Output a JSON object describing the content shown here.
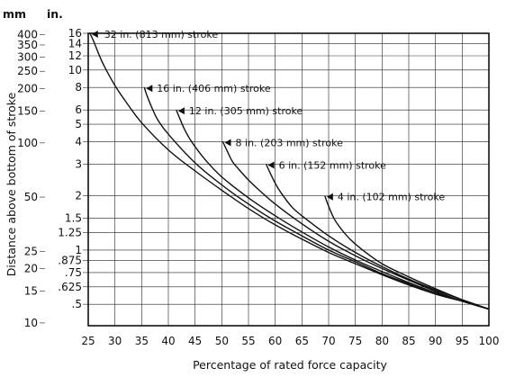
{
  "chart_data": {
    "type": "line",
    "xlabel": "Percentage of rated force capacity",
    "ylabel": "Distance above bottom of stroke",
    "y_scale": "log",
    "x_range": [
      25,
      100
    ],
    "y_range_in": [
      0.38,
      16
    ],
    "x_ticks": [
      "25",
      "30",
      "35",
      "40",
      "45",
      "50",
      "55",
      "60",
      "65",
      "70",
      "75",
      "80",
      "85",
      "90",
      "95",
      "100"
    ],
    "y_unit_in": "in.",
    "y_unit_mm": "mm",
    "in_ticks": [
      {
        "label": "16",
        "value": 16
      },
      {
        "label": "14",
        "value": 14
      },
      {
        "label": "12",
        "value": 12
      },
      {
        "label": "10",
        "value": 10
      },
      {
        "label": "8",
        "value": 8
      },
      {
        "label": "6",
        "value": 6
      },
      {
        "label": "5",
        "value": 5
      },
      {
        "label": "4",
        "value": 4
      },
      {
        "label": "3",
        "value": 3
      },
      {
        "label": "2",
        "value": 2
      },
      {
        "label": "1.5",
        "value": 1.5
      },
      {
        "label": "1.25",
        "value": 1.25
      },
      {
        "label": "1",
        "value": 1
      },
      {
        "label": ".875",
        "value": 0.875
      },
      {
        "label": ".75",
        "value": 0.75
      },
      {
        "label": ".625",
        "value": 0.625
      },
      {
        "label": ".5",
        "value": 0.5
      }
    ],
    "mm_ticks": [
      {
        "label": "400",
        "value": 400
      },
      {
        "label": "350",
        "value": 350
      },
      {
        "label": "300",
        "value": 300
      },
      {
        "label": "250",
        "value": 250
      },
      {
        "label": "200",
        "value": 200
      },
      {
        "label": "150",
        "value": 150
      },
      {
        "label": "100",
        "value": 100
      },
      {
        "label": "50",
        "value": 50
      },
      {
        "label": "25",
        "value": 25
      },
      {
        "label": "20",
        "value": 20
      },
      {
        "label": "15",
        "value": 15
      },
      {
        "label": "10",
        "value": 10
      }
    ],
    "series": [
      {
        "name": "32 in. (813 mm) stroke",
        "x": [
          25.3,
          26,
          27,
          28,
          30,
          32,
          35,
          40,
          45,
          50,
          55,
          60,
          65,
          70,
          75,
          80,
          85,
          90,
          95,
          100
        ],
        "y": [
          16,
          14.5,
          12.2,
          10.5,
          8.2,
          6.7,
          5.1,
          3.6,
          2.75,
          2.15,
          1.7,
          1.38,
          1.15,
          0.97,
          0.84,
          0.73,
          0.64,
          0.57,
          0.52,
          0.47
        ]
      },
      {
        "name": "16 in. (406 mm) stroke",
        "x": [
          35.5,
          36,
          37,
          38,
          40,
          45,
          50,
          55,
          60,
          65,
          70,
          75,
          80,
          85,
          90,
          95,
          100
        ],
        "y": [
          8,
          7.2,
          6.1,
          5.3,
          4.4,
          3.05,
          2.3,
          1.8,
          1.45,
          1.2,
          1.0,
          0.86,
          0.74,
          0.65,
          0.57,
          0.52,
          0.47
        ]
      },
      {
        "name": "12 in. (305 mm) stroke",
        "x": [
          41.5,
          42,
          43,
          44,
          45,
          47,
          50,
          55,
          60,
          65,
          70,
          75,
          80,
          85,
          90,
          95,
          100
        ],
        "y": [
          6,
          5.5,
          4.7,
          4.15,
          3.75,
          3.15,
          2.55,
          1.95,
          1.55,
          1.26,
          1.04,
          0.88,
          0.76,
          0.66,
          0.58,
          0.52,
          0.47
        ]
      },
      {
        "name": "8 in. (203 mm) stroke",
        "x": [
          50.2,
          51,
          52,
          53,
          55,
          57,
          60,
          65,
          70,
          75,
          80,
          85,
          90,
          95,
          100
        ],
        "y": [
          4,
          3.55,
          3.1,
          2.85,
          2.45,
          2.15,
          1.8,
          1.4,
          1.12,
          0.93,
          0.79,
          0.68,
          0.59,
          0.52,
          0.47
        ]
      },
      {
        "name": "6 in. (152 mm) stroke",
        "x": [
          58.3,
          59,
          60,
          61,
          63,
          65,
          70,
          75,
          80,
          85,
          90,
          95,
          100
        ],
        "y": [
          3,
          2.7,
          2.35,
          2.1,
          1.75,
          1.55,
          1.2,
          0.97,
          0.81,
          0.69,
          0.6,
          0.53,
          0.47
        ]
      },
      {
        "name": "4 in. (102 mm) stroke",
        "x": [
          69.3,
          70,
          71,
          72,
          74,
          76,
          80,
          85,
          90,
          95,
          100
        ],
        "y": [
          2,
          1.75,
          1.5,
          1.35,
          1.15,
          1.02,
          0.84,
          0.71,
          0.61,
          0.53,
          0.47
        ]
      }
    ]
  }
}
